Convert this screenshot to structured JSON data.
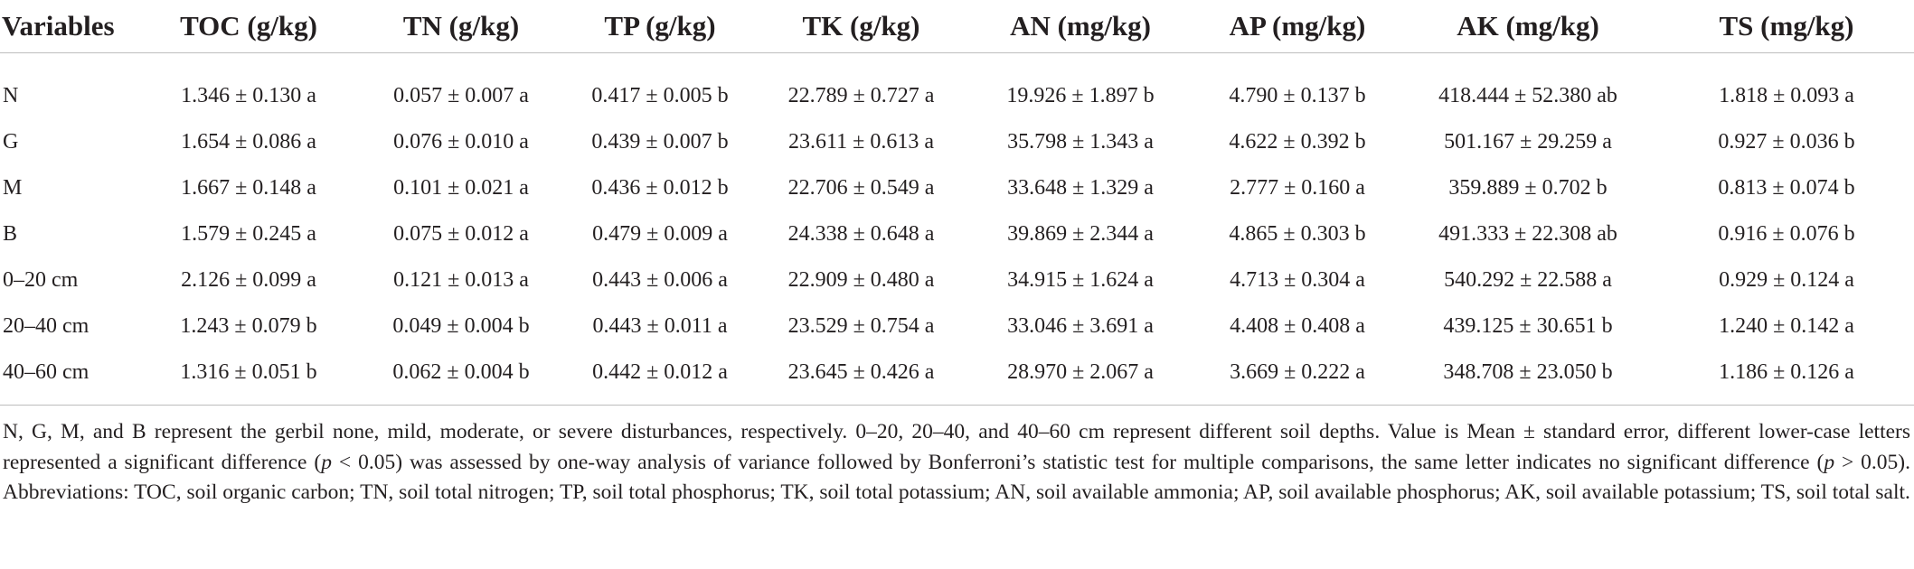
{
  "table": {
    "headers": [
      "Variables",
      "TOC (g/kg)",
      "TN (g/kg)",
      "TP (g/kg)",
      "TK (g/kg)",
      "AN (mg/kg)",
      "AP (mg/kg)",
      "AK (mg/kg)",
      "TS (mg/kg)"
    ],
    "rows": [
      [
        "N",
        "1.346 ± 0.130 a",
        "0.057 ± 0.007 a",
        "0.417 ± 0.005 b",
        "22.789 ± 0.727 a",
        "19.926 ± 1.897 b",
        "4.790 ± 0.137 b",
        "418.444 ± 52.380 ab",
        "1.818 ± 0.093 a"
      ],
      [
        "G",
        "1.654 ± 0.086 a",
        "0.076 ± 0.010 a",
        "0.439 ± 0.007 b",
        "23.611 ± 0.613 a",
        "35.798 ± 1.343 a",
        "4.622 ± 0.392 b",
        "501.167 ± 29.259 a",
        "0.927 ± 0.036 b"
      ],
      [
        "M",
        "1.667 ± 0.148 a",
        "0.101 ± 0.021 a",
        "0.436 ± 0.012 b",
        "22.706 ± 0.549 a",
        "33.648 ± 1.329 a",
        "2.777 ± 0.160 a",
        "359.889 ± 0.702 b",
        "0.813 ± 0.074 b"
      ],
      [
        "B",
        "1.579 ± 0.245 a",
        "0.075 ± 0.012 a",
        "0.479 ± 0.009 a",
        "24.338 ± 0.648 a",
        "39.869 ± 2.344 a",
        "4.865 ± 0.303 b",
        "491.333 ± 22.308 ab",
        "0.916 ± 0.076 b"
      ],
      [
        "0–20 cm",
        "2.126 ± 0.099 a",
        "0.121 ± 0.013 a",
        "0.443 ± 0.006 a",
        "22.909 ± 0.480 a",
        "34.915 ± 1.624 a",
        "4.713 ± 0.304 a",
        "540.292 ± 22.588 a",
        "0.929 ± 0.124 a"
      ],
      [
        "20–40 cm",
        "1.243 ± 0.079 b",
        "0.049 ± 0.004 b",
        "0.443 ± 0.011 a",
        "23.529 ± 0.754 a",
        "33.046 ± 3.691 a",
        "4.408 ± 0.408 a",
        "439.125 ± 30.651 b",
        "1.240 ± 0.142 a"
      ],
      [
        "40–60 cm",
        "1.316 ± 0.051 b",
        "0.062 ± 0.004 b",
        "0.442 ± 0.012 a",
        "23.645 ± 0.426 a",
        "28.970 ± 2.067 a",
        "3.669 ± 0.222 a",
        "348.708 ± 23.050 b",
        "1.186 ± 0.126 a"
      ]
    ]
  },
  "footnote": {
    "part1": "N, G, M, and B represent the gerbil none, mild, moderate, or severe disturbances, respectively. 0–20, 20–40, and 40–60 cm represent different soil depths. Value is Mean ± standard error, different lower-case letters represented a significant difference (",
    "p1": "p",
    "part2": " < 0.05) was assessed by one-way analysis of variance followed by Bonferroni’s statistic test for multiple comparisons, the same letter indicates no significant difference (",
    "p2": "p",
    "part3": " > 0.05). Abbreviations: TOC, soil organic carbon; TN, soil total nitrogen; TP, soil total phosphorus; TK, soil total potassium; AN, soil available ammonia; AP, soil available phosphorus; AK, soil available potassium; TS, soil total salt."
  }
}
